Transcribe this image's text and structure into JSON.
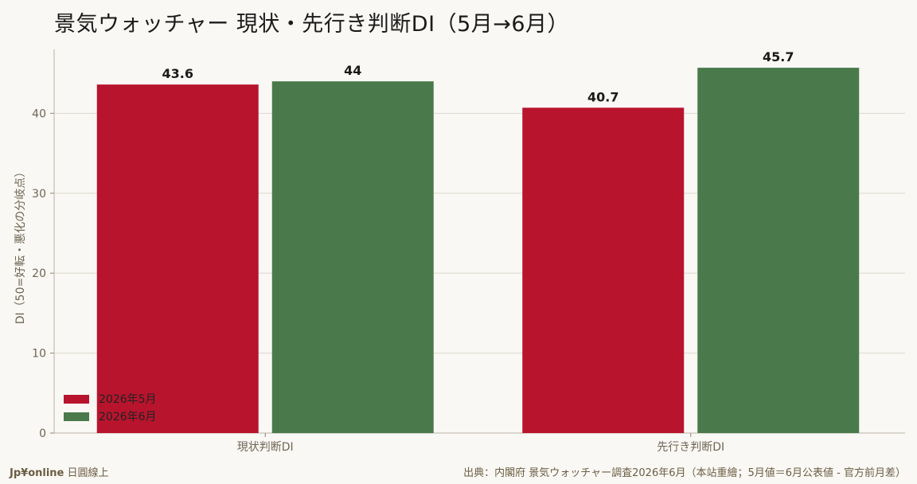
{
  "title": "景気ウォッチャー 現状・先行き判断DI（5月→6月）",
  "footer": {
    "brand": "Jp¥online",
    "brand_suffix": "日圓線上",
    "source": "出典：内閣府 景気ウォッチャー調査2026年6月（本站重繪；5月値＝6月公表値 - 官方前月差）"
  },
  "chart_data": {
    "type": "bar",
    "title": "景気ウォッチャー 現状・先行き判断DI（5月→6月）",
    "categories": [
      "現状判断DI",
      "先行き判断DI"
    ],
    "series": [
      {
        "name": "2026年5月",
        "values": [
          43.6,
          40.7
        ],
        "color": "#b8142d"
      },
      {
        "name": "2026年6月",
        "values": [
          44,
          45.7
        ],
        "color": "#4a7a4b"
      }
    ],
    "xlabel": "",
    "ylabel": "DI（50=好転・悪化の分岐点）",
    "ylim": [
      0,
      48
    ],
    "yticks": [
      0,
      10,
      20,
      30,
      40
    ],
    "grid": true,
    "legend": "bottom-left"
  }
}
